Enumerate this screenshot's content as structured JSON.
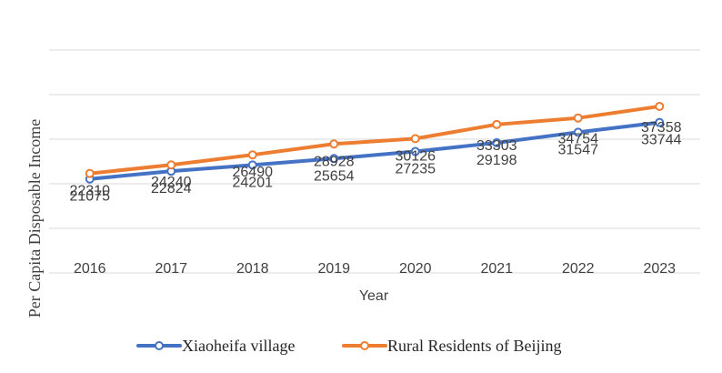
{
  "chart_data": {
    "type": "line",
    "title": "",
    "xlabel": "Year",
    "ylabel": "Per Capita Disposable Income",
    "categories": [
      "2016",
      "2017",
      "2018",
      "2019",
      "2020",
      "2021",
      "2022",
      "2023"
    ],
    "ylim": [
      0,
      50000
    ],
    "grid": true,
    "legend_position": "bottom",
    "series": [
      {
        "name": "Xiaoheifa village",
        "color": "#4472C4",
        "values": [
          21075,
          22824,
          24201,
          25654,
          27235,
          29198,
          31547,
          33744
        ],
        "value_labels": [
          "21075",
          "22824",
          "24201",
          "25654",
          "27235",
          "29198",
          "31547",
          "33744"
        ]
      },
      {
        "name": "Rural Residents of Beijing",
        "color": "#ED7D31",
        "values": [
          22310,
          24240,
          26490,
          28928,
          30126,
          33303,
          34754,
          37358
        ],
        "value_labels": [
          "22310",
          "24240",
          "26490",
          "28928",
          "30126",
          "33303",
          "34754",
          "37358"
        ]
      }
    ]
  }
}
